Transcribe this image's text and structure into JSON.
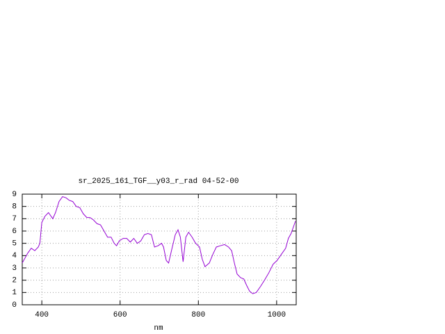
{
  "chart_data": {
    "type": "line",
    "title": "sr_2025_161_TGF__y03_r_rad 04-52-00",
    "x_label": "nm",
    "x": [
      350,
      364,
      373,
      382,
      391,
      395,
      400,
      408,
      417,
      428,
      435,
      444,
      453,
      462,
      470,
      479,
      488,
      497,
      506,
      515,
      523,
      532,
      541,
      550,
      559,
      568,
      577,
      585,
      591,
      598,
      608,
      617,
      626,
      635,
      644,
      653,
      662,
      671,
      680,
      688,
      697,
      706,
      711,
      718,
      724,
      732,
      741,
      748,
      754,
      761,
      768,
      775,
      784,
      793,
      803,
      810,
      817,
      828,
      837,
      846,
      856,
      867,
      877,
      885,
      892,
      899,
      908,
      916,
      923,
      931,
      939,
      948,
      959,
      969,
      980,
      991,
      1001,
      1012,
      1023,
      1030,
      1037,
      1048
    ],
    "series": [
      {
        "color": "#9400d3",
        "values": [
          3.4,
          4.2,
          4.6,
          4.4,
          4.7,
          5.0,
          6.7,
          7.2,
          7.5,
          7.0,
          7.5,
          8.4,
          8.8,
          8.7,
          8.5,
          8.4,
          8.0,
          7.9,
          7.4,
          7.1,
          7.1,
          6.9,
          6.6,
          6.5,
          6.0,
          5.5,
          5.5,
          5.0,
          4.8,
          5.2,
          5.4,
          5.4,
          5.1,
          5.4,
          5.0,
          5.2,
          5.7,
          5.8,
          5.7,
          4.7,
          4.8,
          5.0,
          4.7,
          3.6,
          3.4,
          4.5,
          5.7,
          6.1,
          5.5,
          3.5,
          5.5,
          5.9,
          5.5,
          5.0,
          4.7,
          3.7,
          3.1,
          3.4,
          4.1,
          4.7,
          4.8,
          4.9,
          4.7,
          4.4,
          3.4,
          2.5,
          2.2,
          2.1,
          1.6,
          1.1,
          0.9,
          1.0,
          1.5,
          2.0,
          2.6,
          3.3,
          3.6,
          4.1,
          4.6,
          5.4,
          5.8,
          6.8
        ]
      }
    ],
    "xlim": [
      350,
      1050
    ],
    "ylim": [
      0,
      9
    ],
    "xticks": [
      400,
      600,
      800,
      1000
    ],
    "yticks": [
      0,
      1,
      2,
      3,
      4,
      5,
      6,
      7,
      8,
      9
    ],
    "grid": true
  }
}
